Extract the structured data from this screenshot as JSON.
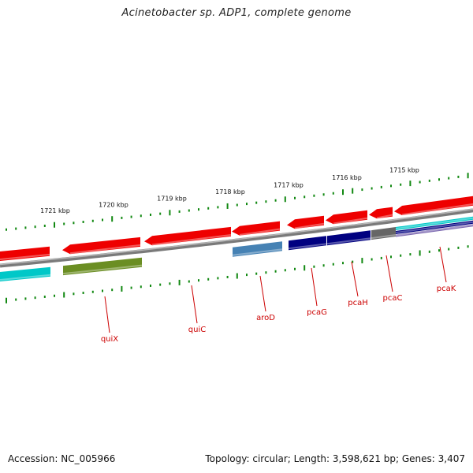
{
  "title": "Acinetobacter sp. ADP1, complete genome",
  "footer": {
    "accession": "Accession: NC_005966",
    "stats": "Topology: circular; Length: 3,598,621 bp; Genes: 3,407"
  },
  "ruler_labels": [
    "1721 kbp",
    "1720 kbp",
    "1719 kbp",
    "1718 kbp",
    "1717 kbp",
    "1716 kbp",
    "1715 kbp"
  ],
  "gene_labels": [
    "quiX",
    "quiC",
    "aroD",
    "pcaG",
    "pcaH",
    "pcaC",
    "pcaK"
  ],
  "colors": {
    "backbone": "#7a7a7a",
    "forward_gene": "#ee0000",
    "tick": "#118811",
    "label": "#cc0000",
    "cyan": "#00c8c8",
    "olive": "#6b8e23",
    "steelblue": "#4682b4",
    "navy": "#000080",
    "gray": "#666666",
    "purple": "#7b68b0"
  }
}
